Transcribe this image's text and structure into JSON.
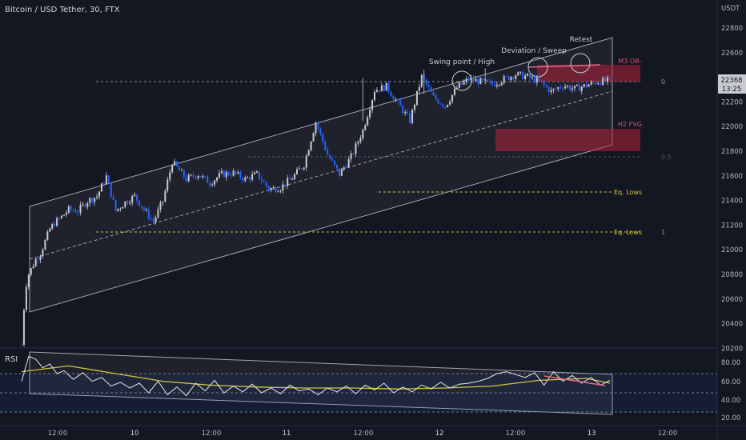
{
  "header": {
    "symbol_title": "Bitcoin / USD Tether, 30, FTX"
  },
  "price_axis": {
    "currency": "USDT",
    "ticks": [
      "22800",
      "22600",
      "22400",
      "22200",
      "22000",
      "21800",
      "21600",
      "21400",
      "21200",
      "21000",
      "20800",
      "20600",
      "20400",
      "20200"
    ],
    "current_price": "22368",
    "countdown": "13:25"
  },
  "time_axis": {
    "ticks": [
      "12:00",
      "10",
      "12:00",
      "11",
      "12:00",
      "12",
      "12:00",
      "13",
      "12:00"
    ]
  },
  "annotations": {
    "swing": "Swing point / High",
    "deviation": "Deviation / Sweep",
    "retest": "Retest",
    "m3ob": "M3 OB-",
    "h2fvg": "H2 FVG",
    "eq1": "Eq. Lows",
    "eq2": "Eq. Lows"
  },
  "fib": {
    "level_0": "0",
    "level_05": "0.5",
    "level_1": "1"
  },
  "rsi": {
    "name": "RSI",
    "ticks": [
      "80.00",
      "60.00",
      "40.00",
      "20.00"
    ]
  },
  "colors": {
    "background": "#131722",
    "bull_candle": "#c9cbd1",
    "bear_candle": "#2962ff",
    "supply_zone": "#b2223a",
    "eq_lows_line": "#d4c340",
    "rsi_line": "#e6e6e6",
    "rsi_ma": "#d4c340"
  },
  "chart_data": [
    {
      "type": "candlestick",
      "title": "Bitcoin / USD Tether, 30, FTX",
      "ylim": [
        20150,
        22900
      ],
      "y_unit": "USDT",
      "close_path": {
        "x": [
          0,
          1,
          2,
          3,
          4,
          6,
          8,
          10,
          12,
          14,
          17,
          20,
          24,
          28,
          32,
          36,
          40,
          44,
          48,
          52,
          56,
          60,
          64,
          70,
          75,
          80,
          85,
          90,
          95,
          100,
          105,
          110,
          115,
          120,
          125,
          130,
          135,
          140,
          145,
          150,
          155,
          160,
          165,
          170,
          175,
          180,
          185,
          190,
          195,
          200,
          205,
          210,
          215,
          220,
          225,
          230,
          235,
          240,
          245,
          250
        ],
        "y": [
          20200,
          20500,
          20700,
          20780,
          20820,
          20900,
          20950,
          21050,
          21150,
          21200,
          21250,
          21310,
          21300,
          21380,
          21420,
          21580,
          21300,
          21370,
          21420,
          21310,
          21210,
          21380,
          21700,
          21560,
          21600,
          21530,
          21600,
          21610,
          21560,
          21600,
          21480,
          21490,
          21570,
          21680,
          22030,
          21760,
          21600,
          21740,
          21960,
          22290,
          22320,
          22180,
          22040,
          22400,
          22230,
          22160,
          22310,
          22380,
          22360,
          22340,
          22380,
          22420,
          22400,
          22360,
          22280,
          22330,
          22300,
          22330,
          22360,
          22368
        ]
      },
      "overlays": {
        "channel": "ascending parallel channel with dashed midline",
        "m3_ob_zone": [
          22320,
          22460
        ],
        "h2_fvg_zone": [
          21770,
          21950
        ],
        "fib_0_price": 22380,
        "fib_05_price": 21755,
        "fib_1_price": 21135,
        "eq_lows_1_price": 21460,
        "eq_lows_2_price": 21135
      }
    },
    {
      "type": "line",
      "title": "RSI",
      "ylim": [
        15,
        95
      ],
      "bands": [
        30,
        50,
        70
      ],
      "series": [
        {
          "rsi": true,
          "x": [
            0,
            3,
            6,
            9,
            12,
            15,
            18,
            22,
            26,
            30,
            34,
            38,
            42,
            46,
            50,
            54,
            58,
            62,
            66,
            70,
            74,
            78,
            82,
            86,
            90,
            94,
            98,
            102,
            106,
            110,
            114,
            118,
            122,
            126,
            130,
            134,
            138,
            142,
            146,
            150,
            154,
            158,
            162,
            166,
            170,
            174,
            178,
            182,
            186,
            190,
            194,
            198,
            202,
            206,
            210,
            214,
            218,
            222,
            226,
            230,
            234,
            238,
            242,
            246,
            250
          ],
          "values": [
            62,
            88,
            85,
            76,
            80,
            70,
            73,
            64,
            71,
            62,
            66,
            57,
            61,
            55,
            60,
            50,
            62,
            48,
            56,
            47,
            60,
            52,
            63,
            50,
            57,
            51,
            59,
            50,
            55,
            49,
            58,
            52,
            54,
            48,
            55,
            51,
            57,
            49,
            58,
            53,
            60,
            50,
            56,
            51,
            58,
            54,
            61,
            55,
            59,
            60,
            62,
            65,
            70,
            72,
            69,
            66,
            71,
            58,
            72,
            62,
            68,
            60,
            66,
            58,
            63
          ]
        },
        {
          "rsi": false,
          "x": [
            0,
            20,
            40,
            60,
            80,
            100,
            120,
            140,
            160,
            180,
            200,
            220,
            240,
            250
          ],
          "values": [
            72,
            78,
            70,
            62,
            58,
            56,
            55,
            55,
            54,
            55,
            57,
            63,
            65,
            60
          ]
        }
      ]
    }
  ]
}
